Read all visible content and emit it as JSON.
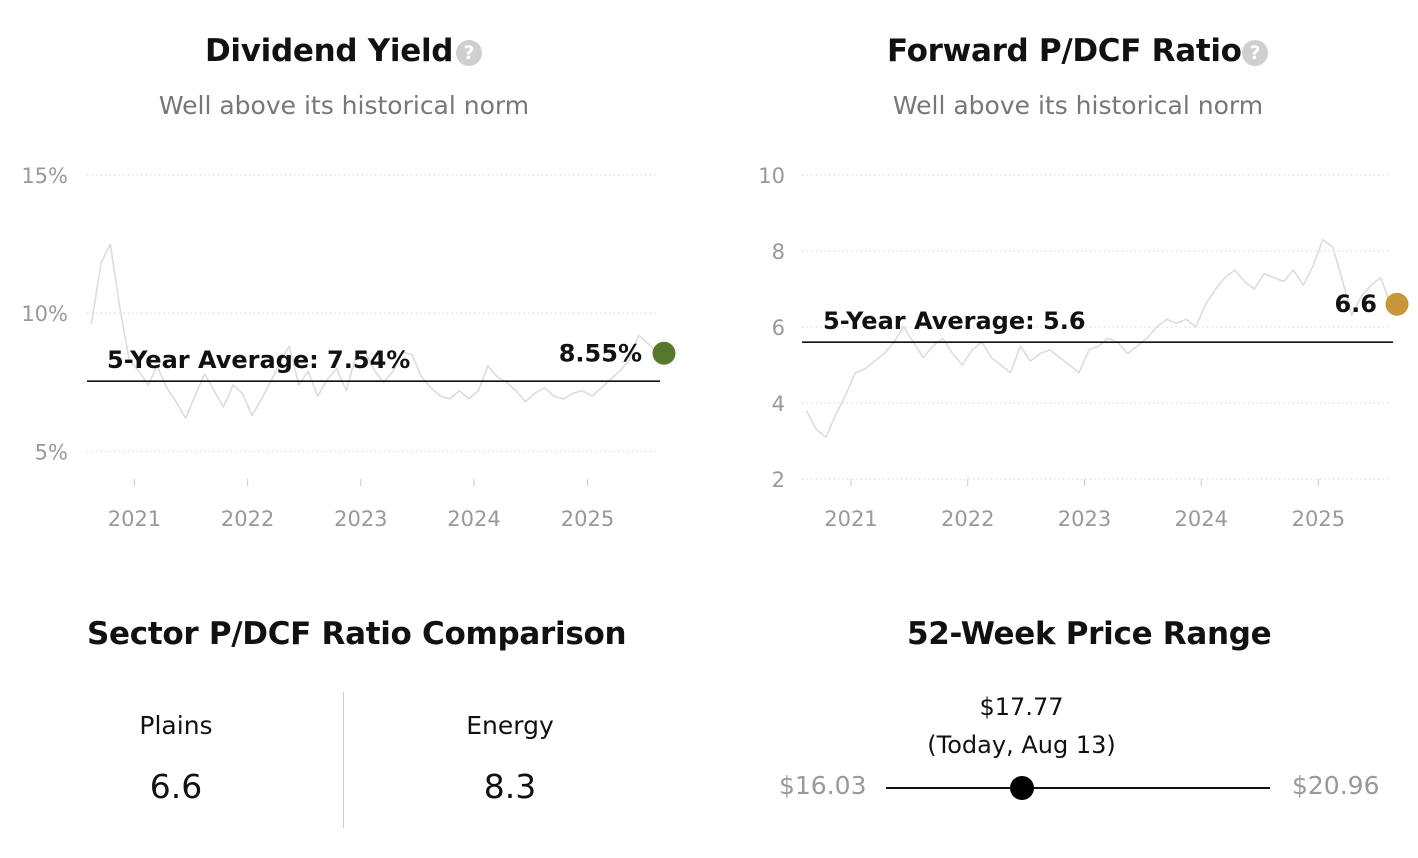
{
  "colors": {
    "yield_marker": "#55782a",
    "pdcf_marker": "#c9973a",
    "history_line": "#dcdcdc",
    "average_line": "#111111",
    "grid": "#d6d6d6"
  },
  "icons": {
    "help": "question-circle-icon"
  },
  "help_icon_glyph": "?",
  "chart_data": [
    {
      "type": "line",
      "title": "Dividend Yield",
      "subtitle": "Well above its historical norm",
      "y_unit": "%",
      "ylim": [
        4,
        15
      ],
      "yticks": [
        5,
        10,
        15
      ],
      "ytick_labels": [
        "5%",
        "10%",
        "15%"
      ],
      "xlim": [
        "2020-08-01",
        "2025-08-13"
      ],
      "xticks": [
        "2021",
        "2022",
        "2023",
        "2024",
        "2025"
      ],
      "grid": "horizontal dotted",
      "average": {
        "label": "5-Year Average: 7.54%",
        "value": 7.54
      },
      "current": {
        "label": "8.55%",
        "value": 8.55,
        "date": "2025-08-13"
      },
      "series": [
        {
          "x": [
            "2020-08",
            "2020-09",
            "2020-10",
            "2020-11",
            "2020-12",
            "2021-01",
            "2021-02",
            "2021-03",
            "2021-04",
            "2021-05",
            "2021-06",
            "2021-07",
            "2021-08",
            "2021-09",
            "2021-10",
            "2021-11",
            "2021-12",
            "2022-01",
            "2022-02",
            "2022-03",
            "2022-04",
            "2022-05",
            "2022-06",
            "2022-07",
            "2022-08",
            "2022-09",
            "2022-10",
            "2022-11",
            "2022-12",
            "2023-01",
            "2023-02",
            "2023-03",
            "2023-04",
            "2023-05",
            "2023-06",
            "2023-07",
            "2023-08",
            "2023-09",
            "2023-10",
            "2023-11",
            "2023-12",
            "2024-01",
            "2024-02",
            "2024-03",
            "2024-04",
            "2024-05",
            "2024-06",
            "2024-07",
            "2024-08",
            "2024-09",
            "2024-10",
            "2024-11",
            "2024-12",
            "2025-01",
            "2025-02",
            "2025-03",
            "2025-04",
            "2025-05",
            "2025-06",
            "2025-07",
            "2025-08"
          ],
          "values": [
            9.6,
            11.8,
            12.5,
            10.2,
            8.3,
            7.9,
            7.4,
            8.1,
            7.3,
            6.8,
            6.2,
            7.0,
            7.8,
            7.2,
            6.6,
            7.4,
            7.1,
            6.3,
            6.9,
            7.5,
            8.2,
            8.8,
            7.4,
            7.9,
            7.0,
            7.6,
            8.0,
            7.2,
            8.4,
            8.6,
            7.9,
            7.5,
            7.9,
            8.6,
            8.5,
            7.7,
            7.3,
            7.0,
            6.9,
            7.2,
            6.9,
            7.2,
            8.1,
            7.7,
            7.5,
            7.2,
            6.8,
            7.1,
            7.3,
            7.0,
            6.9,
            7.1,
            7.2,
            7.0,
            7.3,
            7.6,
            7.9,
            8.3,
            9.2,
            8.9,
            8.55
          ]
        }
      ]
    },
    {
      "type": "line",
      "title": "Forward P/DCF Ratio",
      "subtitle": "Well above its historical norm",
      "ylim": [
        2,
        10
      ],
      "yticks": [
        2,
        4,
        6,
        8,
        10
      ],
      "ytick_labels": [
        "2",
        "4",
        "6",
        "8",
        "10"
      ],
      "xlim": [
        "2020-08-01",
        "2025-08-13"
      ],
      "xticks": [
        "2021",
        "2022",
        "2023",
        "2024",
        "2025"
      ],
      "grid": "horizontal dotted",
      "average": {
        "label": "5-Year Average: 5.6",
        "value": 5.6
      },
      "current": {
        "label": "6.6",
        "value": 6.6,
        "date": "2025-08-13"
      },
      "series": [
        {
          "x": [
            "2020-08",
            "2020-09",
            "2020-10",
            "2020-11",
            "2020-12",
            "2021-01",
            "2021-02",
            "2021-03",
            "2021-04",
            "2021-05",
            "2021-06",
            "2021-07",
            "2021-08",
            "2021-09",
            "2021-10",
            "2021-11",
            "2021-12",
            "2022-01",
            "2022-02",
            "2022-03",
            "2022-04",
            "2022-05",
            "2022-06",
            "2022-07",
            "2022-08",
            "2022-09",
            "2022-10",
            "2022-11",
            "2022-12",
            "2023-01",
            "2023-02",
            "2023-03",
            "2023-04",
            "2023-05",
            "2023-06",
            "2023-07",
            "2023-08",
            "2023-09",
            "2023-10",
            "2023-11",
            "2023-12",
            "2024-01",
            "2024-02",
            "2024-03",
            "2024-04",
            "2024-05",
            "2024-06",
            "2024-07",
            "2024-08",
            "2024-09",
            "2024-10",
            "2024-11",
            "2024-12",
            "2025-01",
            "2025-02",
            "2025-03",
            "2025-04",
            "2025-05",
            "2025-06",
            "2025-07",
            "2025-08"
          ],
          "values": [
            3.8,
            3.3,
            3.1,
            3.7,
            4.2,
            4.8,
            4.9,
            5.1,
            5.3,
            5.6,
            6.0,
            5.6,
            5.2,
            5.5,
            5.7,
            5.3,
            5.0,
            5.4,
            5.6,
            5.2,
            5.0,
            4.8,
            5.5,
            5.1,
            5.3,
            5.4,
            5.2,
            5.0,
            4.8,
            5.4,
            5.5,
            5.7,
            5.6,
            5.3,
            5.5,
            5.7,
            6.0,
            6.2,
            6.1,
            6.2,
            6.0,
            6.6,
            7.0,
            7.3,
            7.5,
            7.2,
            7.0,
            7.4,
            7.3,
            7.2,
            7.5,
            7.1,
            7.6,
            8.3,
            8.1,
            7.3,
            6.3,
            6.8,
            7.1,
            7.3,
            6.6
          ]
        }
      ]
    }
  ],
  "sector": {
    "title": "Sector P/DCF Ratio Comparison",
    "items": [
      {
        "name": "Plains",
        "value": "6.6"
      },
      {
        "name": "Energy",
        "value": "8.3"
      }
    ]
  },
  "price_range": {
    "title": "52-Week Price Range",
    "low_label": "$16.03",
    "high_label": "$20.96",
    "low": 16.03,
    "high": 20.96,
    "current": 17.77,
    "current_label": "$17.77",
    "current_note": "(Today, Aug 13)"
  }
}
